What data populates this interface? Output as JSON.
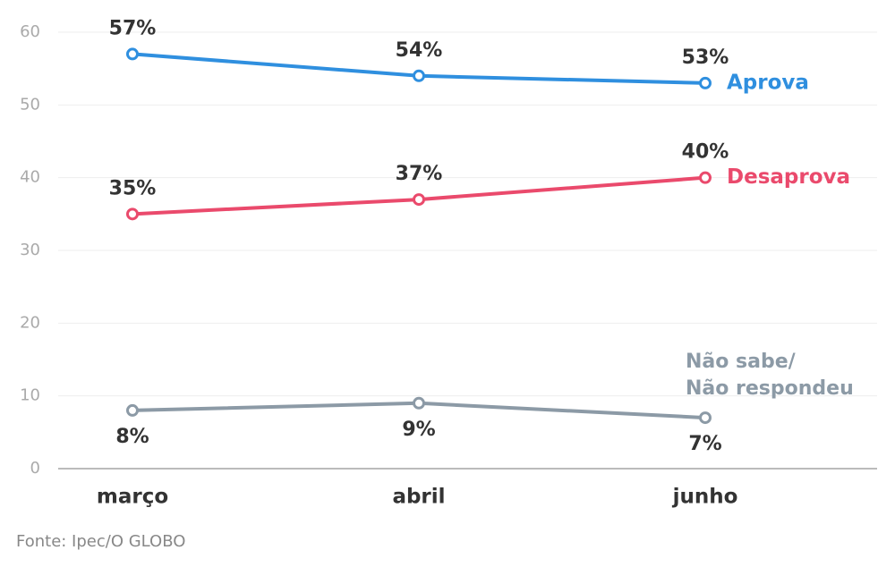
{
  "chart_data": {
    "type": "line",
    "categories": [
      "março",
      "abril",
      "junho"
    ],
    "series": [
      {
        "name": "Aprova",
        "color": "#2f8fdf",
        "values": [
          57,
          54,
          53
        ],
        "value_labels": [
          "57%",
          "54%",
          "53%"
        ]
      },
      {
        "name": "Desaprova",
        "color": "#ea4a6c",
        "values": [
          35,
          37,
          40
        ],
        "value_labels": [
          "35%",
          "37%",
          "40%"
        ]
      },
      {
        "name": "Não sabe/\nNão respondeu",
        "color": "#8c9aa6",
        "values": [
          8,
          9,
          7
        ],
        "value_labels": [
          "8%",
          "9%",
          "7%"
        ]
      }
    ],
    "ylim": [
      0,
      60
    ],
    "yticks": [
      0,
      10,
      20,
      30,
      40,
      50,
      60
    ],
    "grid": true,
    "source": "Fonte: Ipec/O GLOBO"
  }
}
